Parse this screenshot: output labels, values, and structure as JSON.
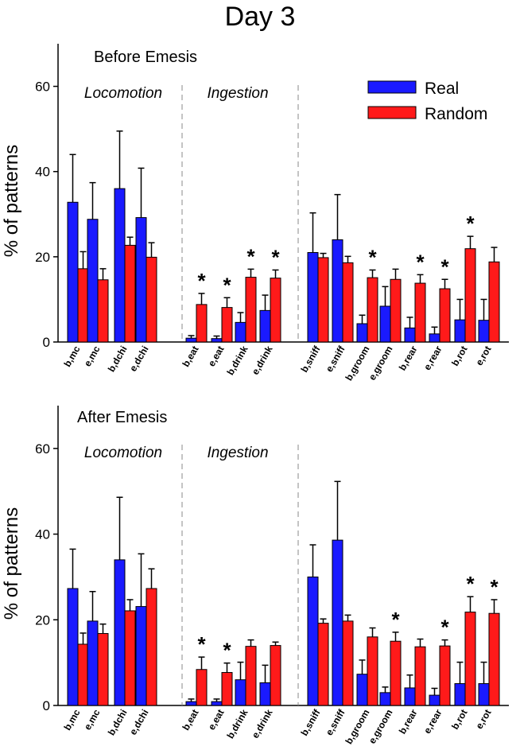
{
  "figure_title": "Day 3",
  "colors": {
    "real": "#1a1aff",
    "random": "#ff1a1a",
    "axis": "#000000",
    "divider": "#888888"
  },
  "chart_data": [
    {
      "type": "bar",
      "title": "Before Emesis",
      "ylabel": "% of patterns",
      "ylim": [
        0,
        70
      ],
      "yticks": [
        "0",
        "20",
        "40",
        "60"
      ],
      "groups": [
        "Locomotion",
        "Ingestion"
      ],
      "legend": [
        "Real",
        "Random"
      ],
      "categories": [
        "b,mc",
        "e,mc",
        "b,dchi",
        "e,dchi",
        "b,eat",
        "e,eat",
        "b,drink",
        "e,drink",
        "b,sniff",
        "e,sniff",
        "b,groom",
        "e,groom",
        "b,rear",
        "e,rear",
        "b,rot",
        "e,rot"
      ],
      "series": [
        {
          "name": "Real",
          "values": [
            32.8,
            28.8,
            36.0,
            29.2,
            0.9,
            0.8,
            4.6,
            7.4,
            21.0,
            24.0,
            4.3,
            8.4,
            3.3,
            1.9,
            5.2,
            5.1
          ],
          "errors": [
            11.2,
            8.6,
            13.5,
            11.6,
            0.6,
            0.6,
            2.3,
            3.6,
            9.3,
            10.6,
            2.0,
            4.6,
            2.5,
            1.6,
            4.8,
            4.9
          ]
        },
        {
          "name": "Random",
          "values": [
            17.2,
            14.6,
            22.7,
            19.9,
            8.8,
            8.1,
            15.2,
            15.0,
            19.8,
            18.6,
            15.1,
            14.7,
            13.8,
            12.5,
            21.9,
            18.8
          ],
          "errors": [
            4.0,
            2.6,
            1.9,
            3.4,
            2.6,
            2.3,
            1.9,
            1.9,
            1.0,
            1.5,
            1.8,
            2.4,
            2.0,
            2.2,
            2.9,
            3.4
          ]
        }
      ],
      "significant": [
        "b,eat",
        "e,eat",
        "b,drink",
        "e,drink",
        "b,groom",
        "b,rear",
        "e,rear",
        "b,rot"
      ],
      "marker": "*"
    },
    {
      "type": "bar",
      "title": "After Emesis",
      "ylabel": "% of patterns",
      "ylim": [
        0,
        70
      ],
      "yticks": [
        "0",
        "20",
        "40",
        "60"
      ],
      "groups": [
        "Locomotion",
        "Ingestion"
      ],
      "categories": [
        "b,mc",
        "e,mc",
        "b,dchi",
        "e,dchi",
        "b,eat",
        "e,eat",
        "b,drink",
        "e,drink",
        "b,sniff",
        "e,sniff",
        "b,groom",
        "e,groom",
        "b,rear",
        "e,rear",
        "b,rot",
        "e,rot"
      ],
      "series": [
        {
          "name": "Real",
          "values": [
            27.3,
            19.7,
            34.0,
            23.1,
            0.9,
            0.9,
            6.0,
            5.3,
            30.0,
            38.6,
            7.3,
            3.0,
            4.1,
            2.4,
            5.1,
            5.1
          ],
          "errors": [
            9.2,
            6.9,
            14.6,
            12.3,
            0.6,
            0.6,
            4.1,
            4.1,
            7.5,
            13.7,
            3.3,
            1.3,
            3.0,
            1.6,
            5.0,
            5.0
          ]
        },
        {
          "name": "Random",
          "values": [
            14.3,
            16.8,
            22.1,
            27.3,
            8.4,
            7.7,
            13.8,
            14.0,
            19.2,
            19.7,
            16.0,
            15.0,
            13.7,
            13.9,
            21.8,
            21.5
          ],
          "errors": [
            2.6,
            2.2,
            2.6,
            4.6,
            2.9,
            2.2,
            1.5,
            0.8,
            1.0,
            1.4,
            2.1,
            2.1,
            1.8,
            1.4,
            3.6,
            3.2
          ]
        }
      ],
      "significant": [
        "b,eat",
        "e,eat",
        "e,groom",
        "e,rear",
        "b,rot",
        "e,rot"
      ],
      "marker": "*"
    }
  ]
}
